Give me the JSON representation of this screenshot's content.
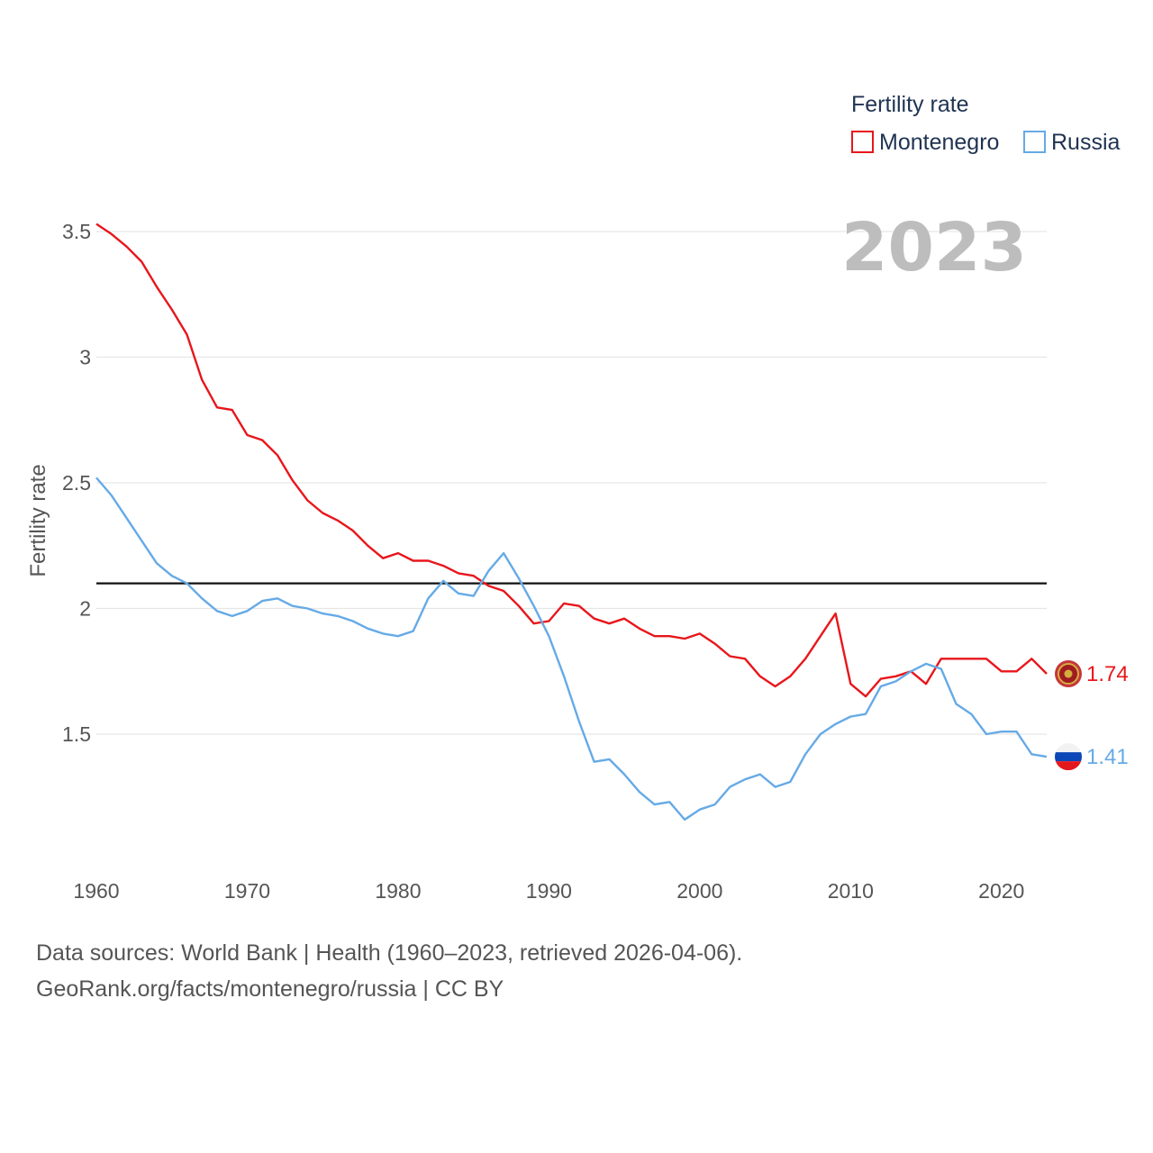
{
  "chart_data": {
    "type": "line",
    "legend_title": "Fertility rate",
    "ylabel": "Fertility rate",
    "year_watermark": "2023",
    "reference_line": 2.1,
    "ylim": [
      1.0,
      3.55
    ],
    "xlim": [
      1960,
      2023
    ],
    "y_ticks": [
      {
        "value": 1.5,
        "label": "1.5"
      },
      {
        "value": 2,
        "label": "2"
      },
      {
        "value": 2.5,
        "label": "2.5"
      },
      {
        "value": 3,
        "label": "3"
      },
      {
        "value": 3.5,
        "label": "3.5"
      }
    ],
    "x_ticks": [
      {
        "value": 1960,
        "label": "1960"
      },
      {
        "value": 1970,
        "label": "1970"
      },
      {
        "value": 1980,
        "label": "1980"
      },
      {
        "value": 1990,
        "label": "1990"
      },
      {
        "value": 2000,
        "label": "2000"
      },
      {
        "value": 2010,
        "label": "2010"
      },
      {
        "value": 2020,
        "label": "2020"
      }
    ],
    "x": [
      1960,
      1961,
      1962,
      1963,
      1964,
      1965,
      1966,
      1967,
      1968,
      1969,
      1970,
      1971,
      1972,
      1973,
      1974,
      1975,
      1976,
      1977,
      1978,
      1979,
      1980,
      1981,
      1982,
      1983,
      1984,
      1985,
      1986,
      1987,
      1988,
      1989,
      1990,
      1991,
      1992,
      1993,
      1994,
      1995,
      1996,
      1997,
      1998,
      1999,
      2000,
      2001,
      2002,
      2003,
      2004,
      2005,
      2006,
      2007,
      2008,
      2009,
      2010,
      2011,
      2012,
      2013,
      2014,
      2015,
      2016,
      2017,
      2018,
      2019,
      2020,
      2021,
      2022,
      2023
    ],
    "series": [
      {
        "name": "Montenegro",
        "color": "#e8161b",
        "end_label": "1.74",
        "values": [
          3.53,
          3.49,
          3.44,
          3.38,
          3.28,
          3.19,
          3.09,
          2.91,
          2.8,
          2.79,
          2.69,
          2.67,
          2.61,
          2.51,
          2.43,
          2.38,
          2.35,
          2.31,
          2.25,
          2.2,
          2.22,
          2.19,
          2.19,
          2.17,
          2.14,
          2.13,
          2.09,
          2.07,
          2.01,
          1.94,
          1.95,
          2.02,
          2.01,
          1.96,
          1.94,
          1.96,
          1.92,
          1.89,
          1.89,
          1.88,
          1.9,
          1.86,
          1.81,
          1.8,
          1.73,
          1.69,
          1.73,
          1.8,
          1.89,
          1.98,
          1.7,
          1.65,
          1.72,
          1.73,
          1.75,
          1.7,
          1.8,
          1.8,
          1.8,
          1.8,
          1.75,
          1.75,
          1.8,
          1.74
        ]
      },
      {
        "name": "Russia",
        "color": "#66aae6",
        "end_label": "1.41",
        "values": [
          2.52,
          2.45,
          2.36,
          2.27,
          2.18,
          2.13,
          2.1,
          2.04,
          1.99,
          1.97,
          1.99,
          2.03,
          2.04,
          2.01,
          2.0,
          1.98,
          1.97,
          1.95,
          1.92,
          1.9,
          1.89,
          1.91,
          2.04,
          2.11,
          2.06,
          2.05,
          2.15,
          2.22,
          2.12,
          2.01,
          1.89,
          1.73,
          1.55,
          1.39,
          1.4,
          1.34,
          1.27,
          1.22,
          1.23,
          1.16,
          1.2,
          1.22,
          1.29,
          1.32,
          1.34,
          1.29,
          1.31,
          1.42,
          1.5,
          1.54,
          1.57,
          1.58,
          1.69,
          1.71,
          1.75,
          1.78,
          1.76,
          1.62,
          1.58,
          1.5,
          1.51,
          1.51,
          1.42,
          1.41
        ]
      }
    ]
  },
  "footer": {
    "line1": "Data sources: World Bank | Health (1960–2023, retrieved 2026-04-06).",
    "line2": "GeoRank.org/facts/montenegro/russia | CC BY"
  }
}
